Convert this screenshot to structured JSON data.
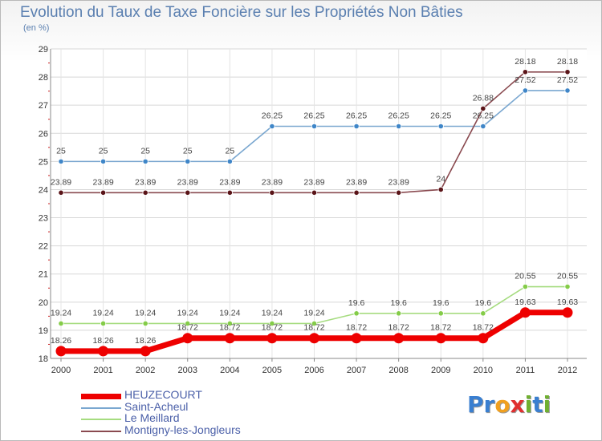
{
  "header": {
    "title": "Evolution du Taux de Taxe Foncière sur les Propriétés Non Bâties",
    "subtitle": "(en %)"
  },
  "logo": {
    "text": "Proxiti",
    "letters": [
      {
        "ch": "P",
        "color": "#3a7fd0"
      },
      {
        "ch": "r",
        "color": "#3a7fd0"
      },
      {
        "ch": "o",
        "color": "#f0a020"
      },
      {
        "ch": "x",
        "color": "#e03030"
      },
      {
        "ch": "i",
        "color": "#70b030"
      },
      {
        "ch": "t",
        "color": "#3a7fd0"
      },
      {
        "ch": "i",
        "color": "#70b030"
      }
    ]
  },
  "chart_data": {
    "type": "line",
    "title": "Evolution du Taux de Taxe Foncière sur les Propriétés Non Bâties",
    "ylabel": "(en %)",
    "xlabel": "",
    "x": [
      "2000",
      "2001",
      "2002",
      "2003",
      "2004",
      "2005",
      "2006",
      "2007",
      "2008",
      "2009",
      "2010",
      "2011",
      "2012"
    ],
    "ylim": [
      18,
      29
    ],
    "yticks": [
      18,
      19,
      20,
      21,
      22,
      23,
      24,
      25,
      26,
      27,
      28,
      29
    ],
    "grid": true,
    "legend_position": "bottom-left",
    "series": [
      {
        "name": "HEUZECOURT",
        "color": "#ee0000",
        "marker_color": "#ee0000",
        "bold": true,
        "values": [
          18.26,
          18.26,
          18.26,
          18.72,
          18.72,
          18.72,
          18.72,
          18.72,
          18.72,
          18.72,
          18.72,
          19.63,
          19.63
        ],
        "labels": [
          "18.26",
          "18.26",
          "18.26",
          "18.72",
          "18.72",
          "18.72",
          "18.72",
          "18.72",
          "18.72",
          "18.72",
          "18.72",
          "19.63",
          "19.63"
        ]
      },
      {
        "name": "Saint-Acheul",
        "color": "#7aa7d0",
        "marker_color": "#3f86c8",
        "bold": false,
        "values": [
          25,
          25,
          25,
          25,
          25,
          26.25,
          26.25,
          26.25,
          26.25,
          26.25,
          26.25,
          27.52,
          27.52
        ],
        "labels": [
          "25",
          "25",
          "25",
          "25",
          "25",
          "26.25",
          "26.25",
          "26.25",
          "26.25",
          "26.25",
          "26.25",
          "27.52",
          "27.52"
        ]
      },
      {
        "name": "Le Meillard",
        "color": "#a6dc80",
        "marker_color": "#84cc48",
        "bold": false,
        "values": [
          19.24,
          19.24,
          19.24,
          19.24,
          19.24,
          19.24,
          19.24,
          19.6,
          19.6,
          19.6,
          19.6,
          20.55,
          20.55
        ],
        "labels": [
          "19.24",
          "19.24",
          "19.24",
          "19.24",
          "19.24",
          "19.24",
          "19.24",
          "19.6",
          "19.6",
          "19.6",
          "19.6",
          "20.55",
          "20.55"
        ]
      },
      {
        "name": "Montigny-les-Jongleurs",
        "color": "#8a4a50",
        "marker_color": "#5a1418",
        "bold": false,
        "values": [
          23.89,
          23.89,
          23.89,
          23.89,
          23.89,
          23.89,
          23.89,
          23.89,
          23.89,
          24,
          26.88,
          28.18,
          28.18
        ],
        "labels": [
          "23.89",
          "23.89",
          "23.89",
          "23.89",
          "23.89",
          "23.89",
          "23.89",
          "23.89",
          "23.89",
          "24",
          "26.88",
          "28.18",
          "28.18"
        ]
      }
    ]
  }
}
